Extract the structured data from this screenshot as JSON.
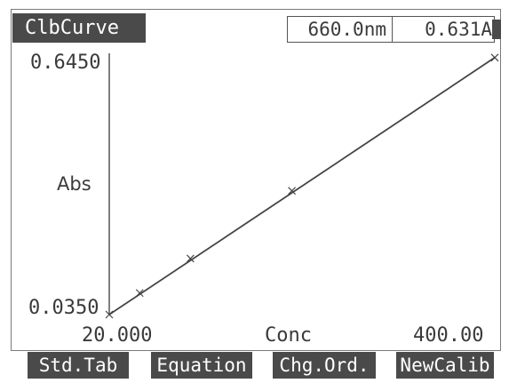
{
  "screen": {
    "title": "ClbCurve",
    "readout": {
      "wavelength": "660.0nm",
      "absorbance": "0.631A"
    }
  },
  "chart_data": {
    "type": "line",
    "title": "",
    "xlabel": "Conc",
    "ylabel": "Abs",
    "x_tick_labels": [
      "20.000",
      "400.00"
    ],
    "y_tick_labels": [
      "0.0350",
      "0.6450"
    ],
    "xlim": [
      20,
      400
    ],
    "ylim": [
      0.035,
      0.645
    ],
    "grid": false,
    "legend": "none",
    "series": [
      {
        "x": [
          20,
          50,
          100,
          200,
          400
        ],
        "y": [
          0.035,
          0.085,
          0.165,
          0.322,
          0.631
        ]
      }
    ],
    "fit_line": {
      "x": [
        20,
        400
      ],
      "y": [
        0.035,
        0.631
      ]
    },
    "colors": {
      "line": "#444444"
    }
  },
  "softkeys": [
    {
      "label": "Std.Tab"
    },
    {
      "label": "Equation"
    },
    {
      "label": "Chg.Ord."
    },
    {
      "label": "NewCalib"
    }
  ],
  "colors": {
    "badge_bg": "#4a4a4a",
    "badge_fg": "#ffffff",
    "text": "#3a3a3a"
  }
}
